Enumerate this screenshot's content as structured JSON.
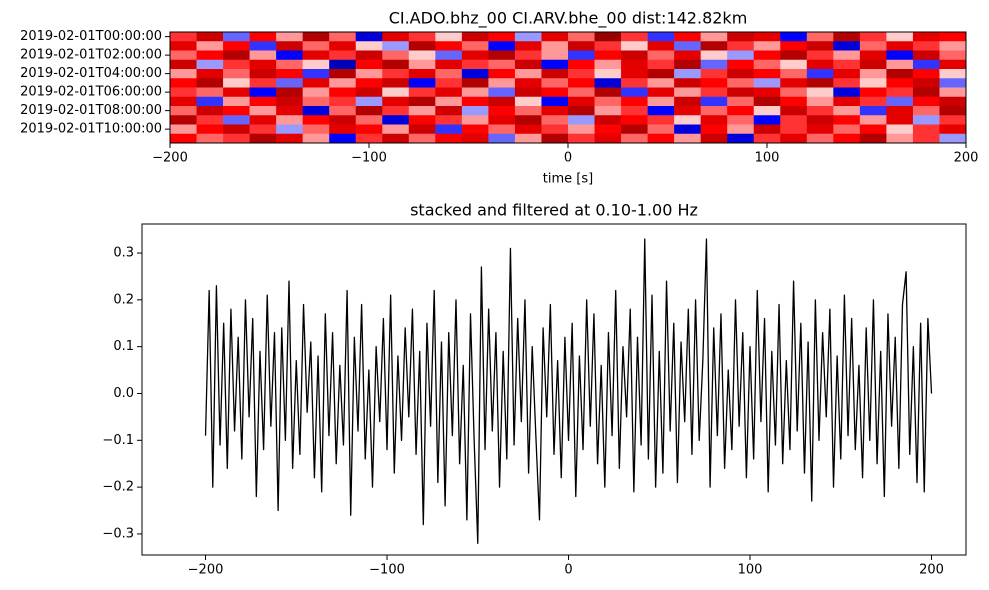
{
  "chart_data": [
    {
      "type": "heatmap",
      "title": "CI.ADO.bhz_00 CI.ARV.bhe_00  dist:142.82km",
      "xlabel": "time [s]",
      "xlim": [
        -200,
        200
      ],
      "xticks": [
        {
          "value": -200,
          "label": "−200"
        },
        {
          "value": -100,
          "label": "−100"
        },
        0,
        100,
        200
      ],
      "categories": [
        "2019-02-01T00:00:00",
        null,
        "2019-02-01T02:00:00",
        null,
        "2019-02-01T04:00:00",
        null,
        "2019-02-01T06:00:00",
        null,
        "2019-02-01T08:00:00",
        null,
        "2019-02-01T10:00:00",
        null
      ],
      "colormap": "seismic",
      "clim": [
        -1,
        1
      ],
      "matrix": [
        [
          0.4,
          0.7,
          -0.3,
          0.5,
          0.2,
          0.8,
          0.3,
          -0.6,
          0.6,
          0.4,
          0.1,
          0.7,
          0.5,
          -0.2,
          0.6,
          0.3,
          0.9,
          0.4,
          -0.4,
          0.5,
          0.2,
          0.7,
          0.6,
          -0.5,
          0.3,
          0.8,
          0.4,
          0.1,
          0.6,
          0.5
        ],
        [
          0.6,
          0.2,
          0.5,
          -0.4,
          0.7,
          0.3,
          0.6,
          0.1,
          -0.2,
          0.8,
          0.5,
          0.3,
          -0.5,
          0.6,
          0.2,
          0.7,
          0.4,
          0.1,
          0.6,
          -0.3,
          0.8,
          0.4,
          0.2,
          0.5,
          0.7,
          -0.6,
          0.3,
          0.6,
          0.4,
          0.2
        ],
        [
          0.3,
          0.5,
          0.8,
          0.2,
          -0.5,
          0.6,
          0.4,
          0.7,
          0.3,
          0.1,
          -0.3,
          0.6,
          0.8,
          0.4,
          0.2,
          -0.4,
          0.5,
          0.7,
          0.3,
          0.6,
          0.1,
          -0.2,
          0.5,
          0.8,
          0.4,
          0.2,
          0.6,
          -0.5,
          0.7,
          0.3
        ],
        [
          0.7,
          -0.2,
          0.4,
          0.6,
          0.3,
          0.1,
          -0.7,
          0.5,
          0.8,
          0.2,
          0.6,
          0.4,
          0.3,
          0.7,
          -0.5,
          0.5,
          0.2,
          0.6,
          0.4,
          0.8,
          -0.3,
          0.5,
          0.3,
          0.1,
          0.6,
          0.4,
          0.7,
          0.2,
          -0.4,
          0.6
        ],
        [
          0.2,
          0.6,
          0.3,
          0.7,
          0.5,
          -0.4,
          0.8,
          0.2,
          0.4,
          0.6,
          0.3,
          -0.6,
          0.5,
          0.2,
          0.7,
          0.4,
          0.1,
          0.6,
          0.8,
          -0.2,
          0.4,
          0.7,
          0.5,
          0.3,
          -0.4,
          0.6,
          0.2,
          0.8,
          0.5,
          0.1
        ],
        [
          0.5,
          0.8,
          0.1,
          0.4,
          -0.3,
          0.6,
          0.2,
          0.5,
          0.7,
          -0.5,
          0.4,
          0.8,
          0.2,
          0.6,
          0.3,
          0.5,
          -0.6,
          0.4,
          0.2,
          0.7,
          0.5,
          0.3,
          -0.2,
          0.6,
          0.8,
          0.4,
          0.1,
          0.5,
          0.7,
          -0.3
        ],
        [
          0.4,
          0.3,
          0.6,
          -0.5,
          0.8,
          0.2,
          0.5,
          0.7,
          0.1,
          0.4,
          0.6,
          0.2,
          -0.3,
          0.7,
          0.5,
          0.3,
          0.8,
          -0.4,
          0.6,
          0.2,
          0.4,
          0.7,
          0.6,
          0.3,
          0.1,
          -0.6,
          0.5,
          0.4,
          0.8,
          0.2
        ],
        [
          0.6,
          -0.4,
          0.2,
          0.5,
          0.7,
          0.3,
          0.4,
          -0.2,
          0.6,
          0.8,
          0.2,
          0.5,
          0.7,
          0.1,
          -0.5,
          0.6,
          0.3,
          0.5,
          0.2,
          0.7,
          -0.4,
          0.3,
          0.8,
          0.5,
          0.2,
          0.6,
          0.4,
          -0.3,
          0.5,
          0.7
        ],
        [
          0.3,
          0.7,
          0.5,
          0.2,
          0.6,
          -0.6,
          0.3,
          0.8,
          0.4,
          0.2,
          0.7,
          -0.2,
          0.5,
          0.3,
          0.6,
          0.8,
          0.2,
          0.4,
          -0.5,
          0.6,
          0.3,
          0.5,
          0.1,
          0.7,
          0.4,
          0.2,
          -0.4,
          0.6,
          0.3,
          0.8
        ],
        [
          0.8,
          0.4,
          -0.3,
          0.6,
          0.2,
          0.5,
          0.7,
          0.3,
          -0.6,
          0.5,
          0.4,
          0.2,
          0.6,
          0.8,
          0.3,
          -0.2,
          0.7,
          0.5,
          0.4,
          0.1,
          0.6,
          0.3,
          -0.5,
          0.4,
          0.7,
          0.5,
          0.2,
          0.6,
          -0.2,
          0.4
        ],
        [
          0.2,
          0.5,
          0.7,
          0.4,
          -0.2,
          0.3,
          0.6,
          0.5,
          0.2,
          0.7,
          -0.4,
          0.5,
          0.3,
          0.6,
          0.4,
          0.2,
          0.5,
          0.8,
          0.3,
          -0.6,
          0.5,
          0.2,
          0.7,
          0.4,
          0.6,
          0.3,
          0.5,
          0.1,
          0.4,
          0.6
        ],
        [
          0.5,
          0.3,
          0.4,
          0.8,
          0.6,
          0.2,
          -0.5,
          0.4,
          0.7,
          0.3,
          0.5,
          0.6,
          -0.3,
          0.2,
          0.8,
          0.4,
          0.6,
          0.3,
          0.5,
          0.2,
          0.7,
          -0.6,
          0.4,
          0.6,
          0.3,
          0.5,
          0.8,
          0.2,
          0.4,
          -0.2
        ]
      ]
    },
    {
      "type": "line",
      "title": "stacked and filtered at 0.10-1.00 Hz",
      "xlim": [
        -235,
        219
      ],
      "xticks": [
        {
          "value": -200,
          "label": "−200"
        },
        {
          "value": -100,
          "label": "−100"
        },
        0,
        100,
        200
      ],
      "ylim": [
        -0.345,
        0.362
      ],
      "yticks": [
        {
          "value": -0.3,
          "label": "−0.3"
        },
        {
          "value": -0.2,
          "label": "−0.2"
        },
        {
          "value": -0.1,
          "label": "−0.1"
        },
        {
          "value": 0,
          "label": "0.0"
        },
        0.1,
        0.2,
        0.3
      ],
      "x": [
        -200,
        -198,
        -196,
        -194,
        -192,
        -190,
        -188,
        -186,
        -184,
        -182,
        -180,
        -178,
        -176,
        -174,
        -172,
        -170,
        -168,
        -166,
        -164,
        -162,
        -160,
        -158,
        -156,
        -154,
        -152,
        -150,
        -148,
        -146,
        -144,
        -142,
        -140,
        -138,
        -136,
        -134,
        -132,
        -130,
        -128,
        -126,
        -124,
        -122,
        -120,
        -118,
        -116,
        -114,
        -112,
        -110,
        -108,
        -106,
        -104,
        -102,
        -100,
        -98,
        -96,
        -94,
        -92,
        -90,
        -88,
        -86,
        -84,
        -82,
        -80,
        -78,
        -76,
        -74,
        -72,
        -70,
        -68,
        -66,
        -64,
        -62,
        -60,
        -58,
        -56,
        -54,
        -52,
        -50,
        -48,
        -46,
        -44,
        -42,
        -40,
        -38,
        -36,
        -34,
        -32,
        -30,
        -28,
        -26,
        -24,
        -22,
        -20,
        -18,
        -16,
        -14,
        -12,
        -10,
        -8,
        -6,
        -4,
        -2,
        0,
        2,
        4,
        6,
        8,
        10,
        12,
        14,
        16,
        18,
        20,
        22,
        24,
        26,
        28,
        30,
        32,
        34,
        36,
        38,
        40,
        42,
        44,
        46,
        48,
        50,
        52,
        54,
        56,
        58,
        60,
        62,
        64,
        66,
        68,
        70,
        72,
        74,
        76,
        78,
        80,
        82,
        84,
        86,
        88,
        90,
        92,
        94,
        96,
        98,
        100,
        102,
        104,
        106,
        108,
        110,
        112,
        114,
        116,
        118,
        120,
        122,
        124,
        126,
        128,
        130,
        132,
        134,
        136,
        138,
        140,
        142,
        144,
        146,
        148,
        150,
        152,
        154,
        156,
        158,
        160,
        162,
        164,
        166,
        168,
        170,
        172,
        174,
        176,
        178,
        180,
        182,
        184,
        186,
        188,
        190,
        192,
        194,
        196,
        198,
        200
      ],
      "series": [
        {
          "color": "#000000",
          "values": [
            -0.09,
            0.22,
            -0.2,
            0.23,
            -0.11,
            0.15,
            -0.16,
            0.18,
            -0.08,
            0.12,
            -0.14,
            0.2,
            -0.05,
            0.16,
            -0.22,
            0.09,
            -0.12,
            0.21,
            -0.07,
            0.13,
            -0.25,
            0.14,
            -0.1,
            0.24,
            -0.16,
            0.07,
            -0.13,
            0.19,
            -0.04,
            0.11,
            -0.18,
            0.08,
            -0.21,
            0.17,
            -0.09,
            0.13,
            -0.15,
            0.06,
            -0.11,
            0.22,
            -0.26,
            0.12,
            -0.08,
            0.19,
            -0.14,
            0.05,
            -0.2,
            0.1,
            -0.06,
            0.16,
            -0.12,
            0.21,
            -0.17,
            0.08,
            -0.1,
            0.14,
            -0.05,
            0.18,
            -0.13,
            0.09,
            -0.28,
            0.15,
            -0.07,
            0.22,
            -0.19,
            0.11,
            -0.24,
            0.13,
            -0.09,
            0.2,
            -0.15,
            0.06,
            -0.27,
            0.17,
            -0.1,
            -0.32,
            0.27,
            -0.12,
            0.18,
            -0.08,
            0.13,
            -0.2,
            0.09,
            -0.14,
            0.31,
            -0.11,
            0.16,
            -0.06,
            0.2,
            -0.17,
            0.1,
            -0.09,
            -0.27,
            0.14,
            -0.05,
            0.19,
            -0.13,
            0.07,
            -0.18,
            0.12,
            -0.1,
            0.15,
            -0.22,
            0.08,
            -0.12,
            0.2,
            -0.07,
            0.17,
            -0.15,
            0.06,
            -0.2,
            0.13,
            -0.09,
            0.22,
            -0.16,
            0.1,
            -0.05,
            0.18,
            -0.21,
            0.12,
            -0.11,
            0.33,
            -0.14,
            0.21,
            -0.2,
            0.09,
            -0.17,
            0.24,
            -0.08,
            0.15,
            -0.19,
            0.11,
            -0.06,
            0.18,
            -0.13,
            0.2,
            -0.1,
            0.07,
            0.33,
            -0.2,
            0.14,
            -0.09,
            0.17,
            -0.16,
            0.05,
            -0.12,
            0.2,
            -0.07,
            0.13,
            -0.18,
            0.1,
            -0.14,
            0.22,
            -0.06,
            0.16,
            -0.21,
            0.09,
            -0.11,
            0.19,
            -0.15,
            0.07,
            -0.12,
            0.24,
            -0.08,
            0.15,
            -0.17,
            0.11,
            -0.23,
            0.2,
            -0.1,
            0.13,
            -0.05,
            0.18,
            -0.2,
            0.08,
            -0.14,
            0.21,
            -0.09,
            0.16,
            -0.12,
            0.06,
            -0.18,
            0.14,
            -0.1,
            0.2,
            -0.15,
            0.09,
            -0.22,
            0.17,
            -0.07,
            0.12,
            -0.16,
            0.19,
            0.26,
            -0.13,
            0.1,
            -0.19,
            0.15,
            -0.21,
            0.16,
            0.0
          ]
        }
      ]
    }
  ]
}
